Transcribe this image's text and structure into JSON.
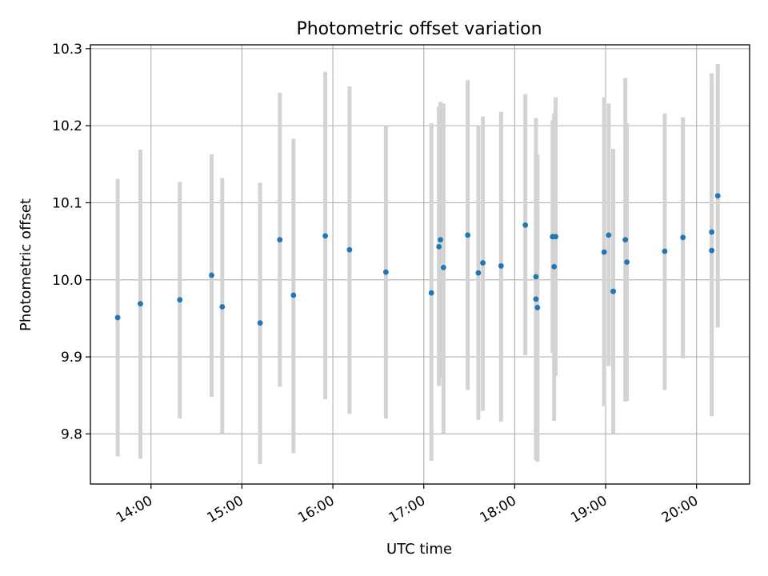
{
  "chart_data": {
    "type": "scatter",
    "title": "Photometric offset variation",
    "xlabel": "UTC time",
    "ylabel": "Photometric offset",
    "x_ticks": [
      "14:00",
      "15:00",
      "16:00",
      "17:00",
      "18:00",
      "19:00",
      "20:00"
    ],
    "y_ticks": [
      "9.8",
      "9.9",
      "10.0",
      "10.1",
      "10.2",
      "10.3"
    ],
    "xlim": [
      "13:20",
      "20:35"
    ],
    "ylim": [
      9.735,
      10.305
    ],
    "grid": true,
    "marker_color": "#1f77b4",
    "errorbar_color": "#d3d3d3",
    "points": [
      {
        "t": "13:38",
        "y": 9.951,
        "lo": 9.771,
        "hi": 10.131
      },
      {
        "t": "13:53",
        "y": 9.969,
        "lo": 9.768,
        "hi": 10.169
      },
      {
        "t": "14:19",
        "y": 9.974,
        "lo": 9.82,
        "hi": 10.127
      },
      {
        "t": "14:40",
        "y": 10.006,
        "lo": 9.848,
        "hi": 10.163
      },
      {
        "t": "14:47",
        "y": 9.965,
        "lo": 9.8,
        "hi": 10.132
      },
      {
        "t": "15:12",
        "y": 9.944,
        "lo": 9.761,
        "hi": 10.126
      },
      {
        "t": "15:25",
        "y": 10.052,
        "lo": 9.861,
        "hi": 10.243
      },
      {
        "t": "15:34",
        "y": 9.98,
        "lo": 9.775,
        "hi": 10.183
      },
      {
        "t": "15:55",
        "y": 10.057,
        "lo": 9.845,
        "hi": 10.27
      },
      {
        "t": "16:11",
        "y": 10.039,
        "lo": 9.826,
        "hi": 10.251
      },
      {
        "t": "16:35",
        "y": 10.01,
        "lo": 9.82,
        "hi": 10.2
      },
      {
        "t": "17:05",
        "y": 9.983,
        "lo": 9.765,
        "hi": 10.203
      },
      {
        "t": "17:10",
        "y": 10.043,
        "lo": 9.862,
        "hi": 10.225
      },
      {
        "t": "17:11",
        "y": 10.052,
        "lo": 9.873,
        "hi": 10.231
      },
      {
        "t": "17:13",
        "y": 10.016,
        "lo": 9.8,
        "hi": 10.229
      },
      {
        "t": "17:29",
        "y": 10.058,
        "lo": 9.857,
        "hi": 10.259
      },
      {
        "t": "17:36",
        "y": 10.009,
        "lo": 9.818,
        "hi": 10.2
      },
      {
        "t": "17:39",
        "y": 10.022,
        "lo": 9.83,
        "hi": 10.212
      },
      {
        "t": "17:51",
        "y": 10.018,
        "lo": 9.816,
        "hi": 10.218
      },
      {
        "t": "18:07",
        "y": 10.071,
        "lo": 9.902,
        "hi": 10.241
      },
      {
        "t": "18:14",
        "y": 10.004,
        "lo": 9.8,
        "hi": 10.21
      },
      {
        "t": "18:14",
        "y": 9.975,
        "lo": 9.766,
        "hi": 10.163
      },
      {
        "t": "18:15",
        "y": 9.964,
        "lo": 9.764,
        "hi": 10.163
      },
      {
        "t": "18:25",
        "y": 10.056,
        "lo": 9.905,
        "hi": 10.207
      },
      {
        "t": "18:26",
        "y": 10.017,
        "lo": 9.817,
        "hi": 10.216
      },
      {
        "t": "18:27",
        "y": 10.056,
        "lo": 9.875,
        "hi": 10.237
      },
      {
        "t": "18:59",
        "y": 10.036,
        "lo": 9.836,
        "hi": 10.237
      },
      {
        "t": "19:02",
        "y": 10.058,
        "lo": 9.888,
        "hi": 10.229
      },
      {
        "t": "19:05",
        "y": 9.985,
        "lo": 9.8,
        "hi": 10.17
      },
      {
        "t": "19:13",
        "y": 10.052,
        "lo": 9.842,
        "hi": 10.262
      },
      {
        "t": "19:14",
        "y": 10.023,
        "lo": 9.843,
        "hi": 10.203
      },
      {
        "t": "19:39",
        "y": 10.037,
        "lo": 9.857,
        "hi": 10.216
      },
      {
        "t": "19:51",
        "y": 10.055,
        "lo": 9.898,
        "hi": 10.211
      },
      {
        "t": "20:10",
        "y": 10.062,
        "lo": 9.856,
        "hi": 10.268
      },
      {
        "t": "20:10",
        "y": 10.038,
        "lo": 9.823,
        "hi": 10.252
      },
      {
        "t": "20:14",
        "y": 10.109,
        "lo": 9.938,
        "hi": 10.28
      }
    ]
  }
}
